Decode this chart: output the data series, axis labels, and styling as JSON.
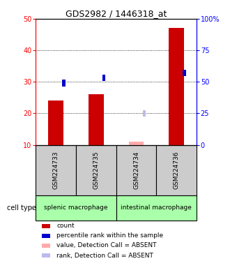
{
  "title": "GDS2982 / 1446318_at",
  "samples": [
    "GSM224733",
    "GSM224735",
    "GSM224734",
    "GSM224736"
  ],
  "cell_types": [
    {
      "label": "splenic macrophage",
      "span": [
        0,
        1
      ],
      "color": "#aaffaa"
    },
    {
      "label": "intestinal macrophage",
      "span": [
        2,
        3
      ],
      "color": "#aaffaa"
    }
  ],
  "count_values": [
    24,
    26,
    11,
    47
  ],
  "count_absent": [
    false,
    false,
    true,
    false
  ],
  "rank_values_pct": [
    49,
    53,
    25,
    57
  ],
  "rank_absent": [
    false,
    false,
    true,
    false
  ],
  "ylim_left": [
    10,
    50
  ],
  "ylim_right": [
    0,
    100
  ],
  "yticks_left": [
    10,
    20,
    30,
    40,
    50
  ],
  "yticks_right": [
    0,
    25,
    50,
    75,
    100
  ],
  "ytick_labels_right": [
    "0",
    "25",
    "50",
    "75",
    "100%"
  ],
  "bar_color_present": "#cc0000",
  "bar_color_absent": "#ffaaaa",
  "rank_color_present": "#0000cc",
  "rank_color_absent": "#bbbbee",
  "sample_box_color": "#cccccc",
  "grid_color": "#888888",
  "legend_items": [
    {
      "color": "#cc0000",
      "label": "count"
    },
    {
      "color": "#0000cc",
      "label": "percentile rank within the sample"
    },
    {
      "color": "#ffaaaa",
      "label": "value, Detection Call = ABSENT"
    },
    {
      "color": "#bbbbee",
      "label": "rank, Detection Call = ABSENT"
    }
  ]
}
